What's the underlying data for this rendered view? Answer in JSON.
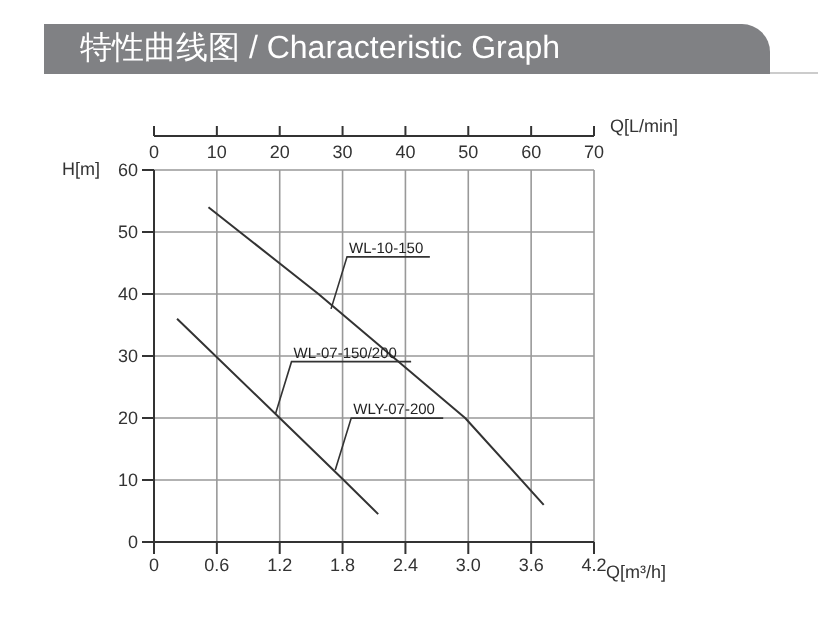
{
  "chart_data": {
    "type": "line",
    "title": "特性曲线图 / Characteristic Graph",
    "xlabel": "Q[m³/h]",
    "x2label": "Q[L/min]",
    "ylabel": "H[m]",
    "series": [
      {
        "color": "#333333",
        "x": [
          0.52,
          1.57,
          2.97,
          3.72
        ],
        "values": [
          54,
          40,
          20,
          6
        ]
      },
      {
        "color": "#333333",
        "x": [
          0.22,
          1.2,
          1.81,
          2.14
        ],
        "values": [
          36,
          20,
          10,
          4.5
        ]
      }
    ],
    "annotations": [
      {
        "text": "WL-10-150",
        "x": 1.69,
        "y": 37.6
      },
      {
        "text": "WL-07-150/200",
        "x": 1.16,
        "y": 20.7
      },
      {
        "text": "WLY-07-200",
        "x": 1.73,
        "y": 11.6
      }
    ],
    "xlim": [
      0,
      4.2
    ],
    "xticks": [
      0,
      0.6,
      1.2,
      1.8,
      2.4,
      {
        "value": 3,
        "label": "3.0"
      },
      3.6,
      4.2
    ],
    "x2lim": [
      0,
      70
    ],
    "x2ticks": [
      0,
      10,
      20,
      30,
      40,
      50,
      60,
      70
    ],
    "ylim": [
      0,
      60
    ],
    "yticks": [
      0,
      10,
      20,
      30,
      40,
      50,
      60
    ],
    "grid": true,
    "marker": "none",
    "line_style": "solid",
    "legend": false
  }
}
